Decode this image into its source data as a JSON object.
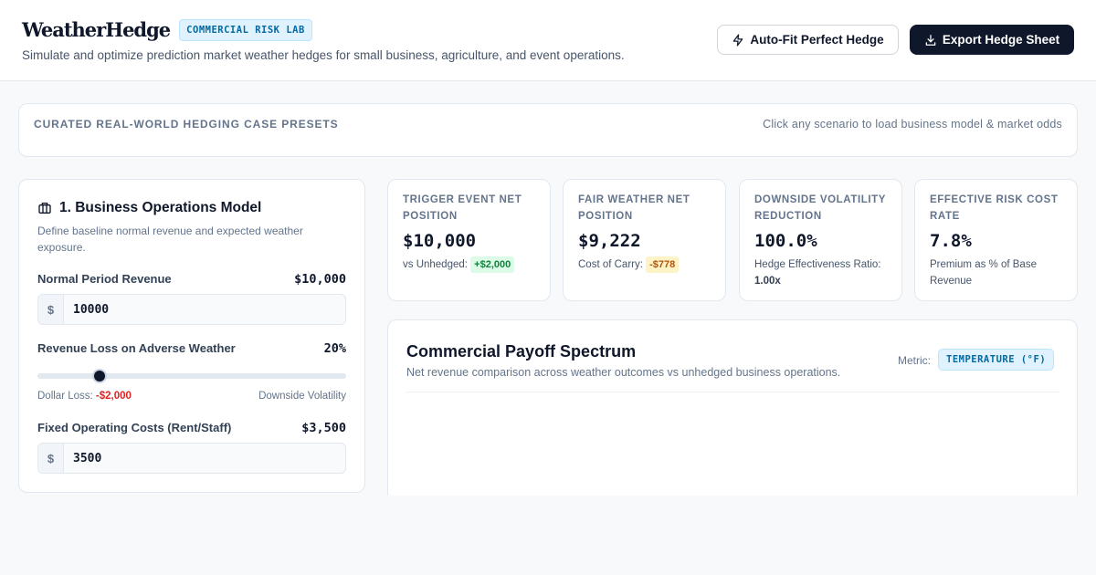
{
  "header": {
    "brand": "WeatherHedge",
    "badge": "COMMERCIAL RISK LAB",
    "tagline": "Simulate and optimize prediction market weather hedges for small business, agriculture, and event operations.",
    "autofit_label": "Auto-Fit Perfect Hedge",
    "export_label": "Export Hedge Sheet",
    "autofit_icon": "lightning-icon",
    "export_icon": "download-icon"
  },
  "presets": {
    "title": "CURATED REAL-WORLD HEDGING CASE PRESETS",
    "hint": "Click any scenario to load business model & market odds"
  },
  "ops": {
    "icon": "briefcase-icon",
    "title": "1. Business Operations Model",
    "description": "Define baseline normal revenue and expected weather exposure.",
    "revenue": {
      "label": "Normal Period Revenue",
      "display": "$10,000",
      "prefix": "$",
      "value": "10000"
    },
    "loss": {
      "label": "Revenue Loss on Adverse Weather",
      "display": "20%",
      "percent": 20,
      "dollar_loss_label": "Dollar Loss:",
      "dollar_loss_value": "-$2,000",
      "right_label": "Downside Volatility"
    },
    "fixed_costs": {
      "label": "Fixed Operating Costs (Rent/Staff)",
      "display": "$3,500",
      "prefix": "$",
      "value": "3500"
    }
  },
  "kpis": [
    {
      "label": "TRIGGER EVENT NET POSITION",
      "value": "$10,000",
      "sub_text": "vs Unhedged:",
      "pill": "+$2,000"
    },
    {
      "label": "FAIR WEATHER NET POSITION",
      "value": "$9,222",
      "sub_text": "Cost of Carry:",
      "pill": "-$778"
    },
    {
      "label": "DOWNSIDE VOLATILITY REDUCTION",
      "value": "100.0%",
      "sub_text": "Hedge Effectiveness Ratio:",
      "sub_bold": "1.00x"
    },
    {
      "label": "EFFECTIVE RISK COST RATE",
      "value": "7.8%",
      "sub_text": "Premium as % of Base Revenue"
    }
  ],
  "spectrum": {
    "title": "Commercial Payoff Spectrum",
    "description": "Net revenue comparison across weather outcomes vs unhedged business operations.",
    "metric_label": "Metric:",
    "metric_value": "TEMPERATURE (°F)"
  },
  "colors": {
    "accent": "#0369a1",
    "dark": "#0f172a",
    "positive": "#15803d",
    "negative": "#dc2626",
    "warning": "#b45309"
  }
}
